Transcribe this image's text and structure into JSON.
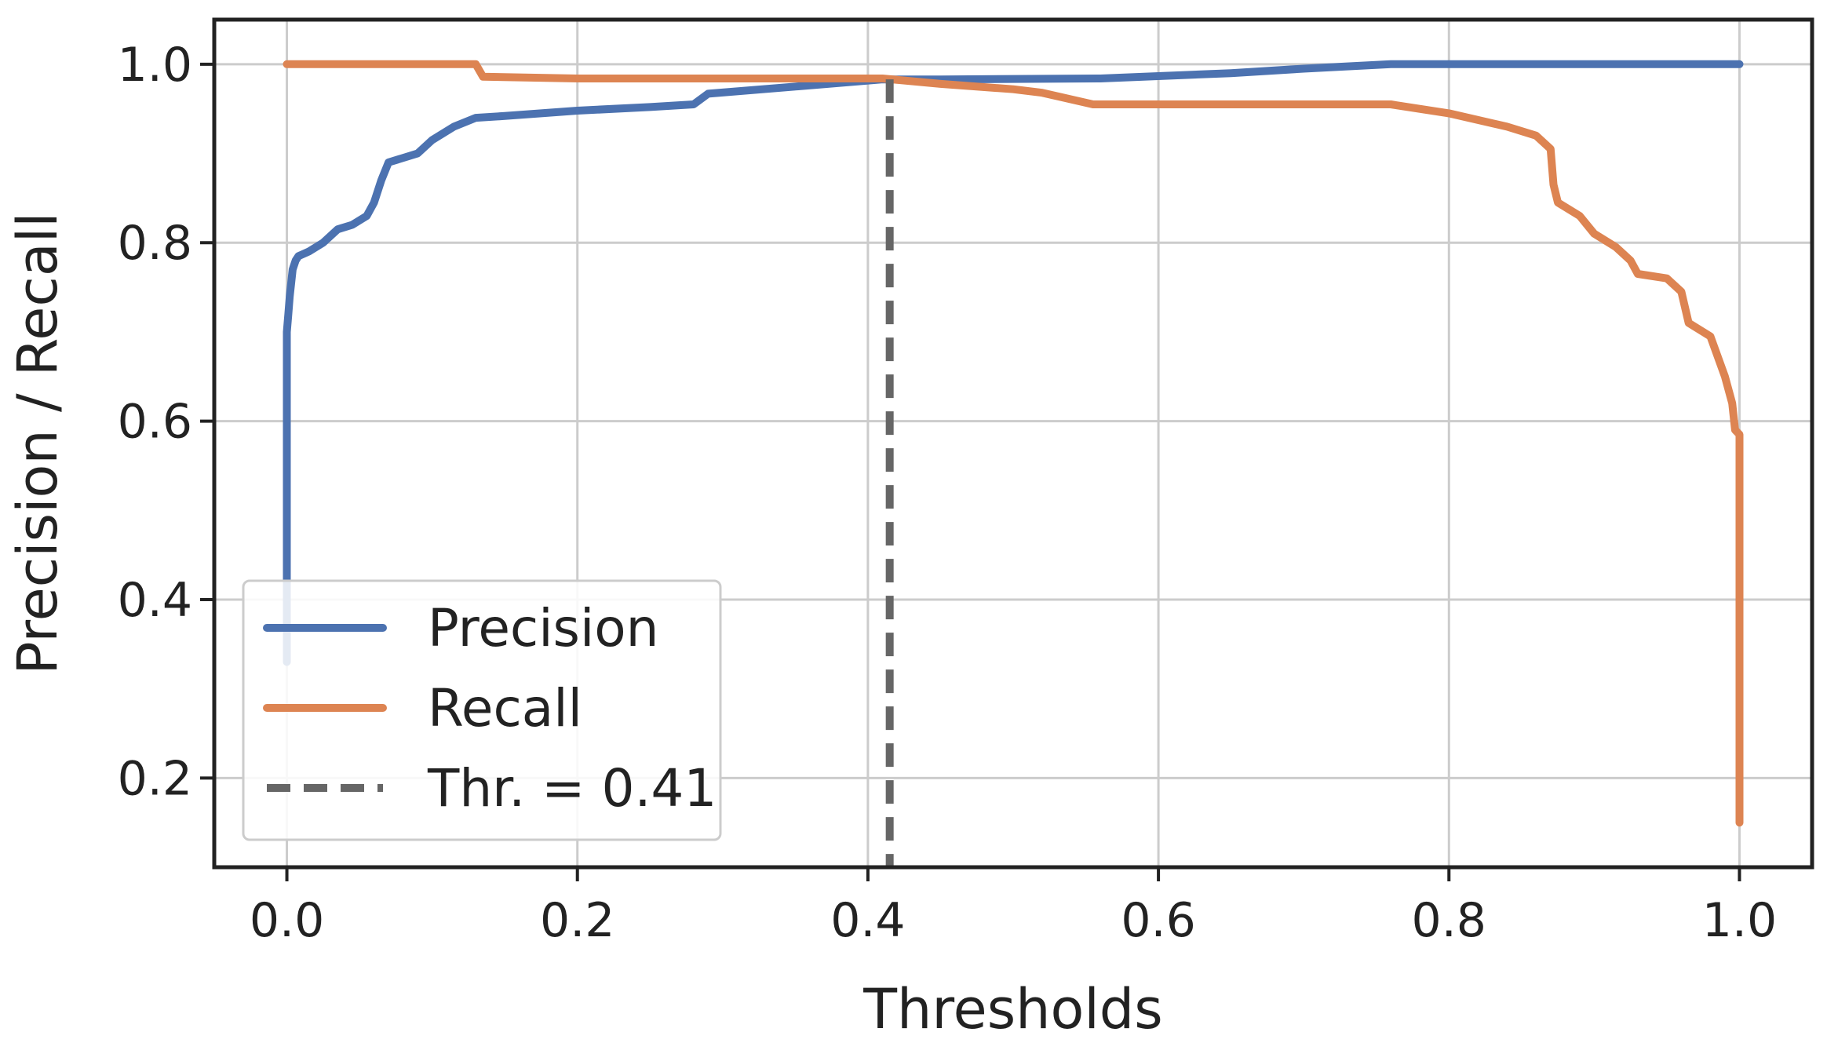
{
  "chart_data": {
    "type": "line",
    "title": "",
    "xlabel": "Thresholds",
    "ylabel": "Precision / Recall",
    "xlim": [
      -0.05,
      1.05
    ],
    "ylim": [
      0.1,
      1.05
    ],
    "xticks": [
      0.0,
      0.2,
      0.4,
      0.6,
      0.8,
      1.0
    ],
    "xtick_labels": [
      "0.0",
      "0.2",
      "0.4",
      "0.6",
      "0.8",
      "1.0"
    ],
    "yticks": [
      0.2,
      0.4,
      0.6,
      0.8,
      1.0
    ],
    "ytick_labels": [
      "0.2",
      "0.4",
      "0.6",
      "0.8",
      "1.0"
    ],
    "grid": true,
    "legend_position": "lower-left",
    "series": [
      {
        "name": "Precision",
        "color": "#4c72b0",
        "style": "solid",
        "x": [
          0.0,
          0.0,
          0.001,
          0.002,
          0.004,
          0.006,
          0.008,
          0.015,
          0.025,
          0.035,
          0.045,
          0.055,
          0.06,
          0.065,
          0.07,
          0.09,
          0.1,
          0.115,
          0.13,
          0.15,
          0.2,
          0.25,
          0.28,
          0.29,
          0.35,
          0.41,
          0.45,
          0.56,
          0.65,
          0.7,
          0.76,
          0.8,
          0.9,
          1.0
        ],
        "values": [
          0.33,
          0.7,
          0.72,
          0.74,
          0.77,
          0.78,
          0.785,
          0.79,
          0.8,
          0.815,
          0.82,
          0.83,
          0.845,
          0.87,
          0.89,
          0.9,
          0.915,
          0.93,
          0.94,
          0.942,
          0.948,
          0.952,
          0.955,
          0.967,
          0.975,
          0.983,
          0.983,
          0.984,
          0.99,
          0.995,
          1.0,
          1.0,
          1.0,
          1.0
        ]
      },
      {
        "name": "Recall",
        "color": "#dd8452",
        "style": "solid",
        "x": [
          0.0,
          0.13,
          0.135,
          0.2,
          0.3,
          0.41,
          0.45,
          0.5,
          0.52,
          0.555,
          0.6,
          0.7,
          0.76,
          0.8,
          0.84,
          0.86,
          0.87,
          0.872,
          0.875,
          0.89,
          0.9,
          0.915,
          0.925,
          0.93,
          0.95,
          0.96,
          0.965,
          0.98,
          0.99,
          0.995,
          0.997,
          1.0,
          1.0
        ],
        "values": [
          1.0,
          1.0,
          0.986,
          0.984,
          0.984,
          0.984,
          0.978,
          0.972,
          0.968,
          0.955,
          0.955,
          0.955,
          0.955,
          0.945,
          0.93,
          0.92,
          0.905,
          0.865,
          0.845,
          0.83,
          0.81,
          0.795,
          0.78,
          0.765,
          0.76,
          0.745,
          0.71,
          0.695,
          0.65,
          0.62,
          0.59,
          0.585,
          0.15
        ]
      }
    ],
    "threshold_line": {
      "label": "Thr. = 0.41",
      "x": 0.415,
      "color": "#666666",
      "style": "dashed"
    }
  }
}
